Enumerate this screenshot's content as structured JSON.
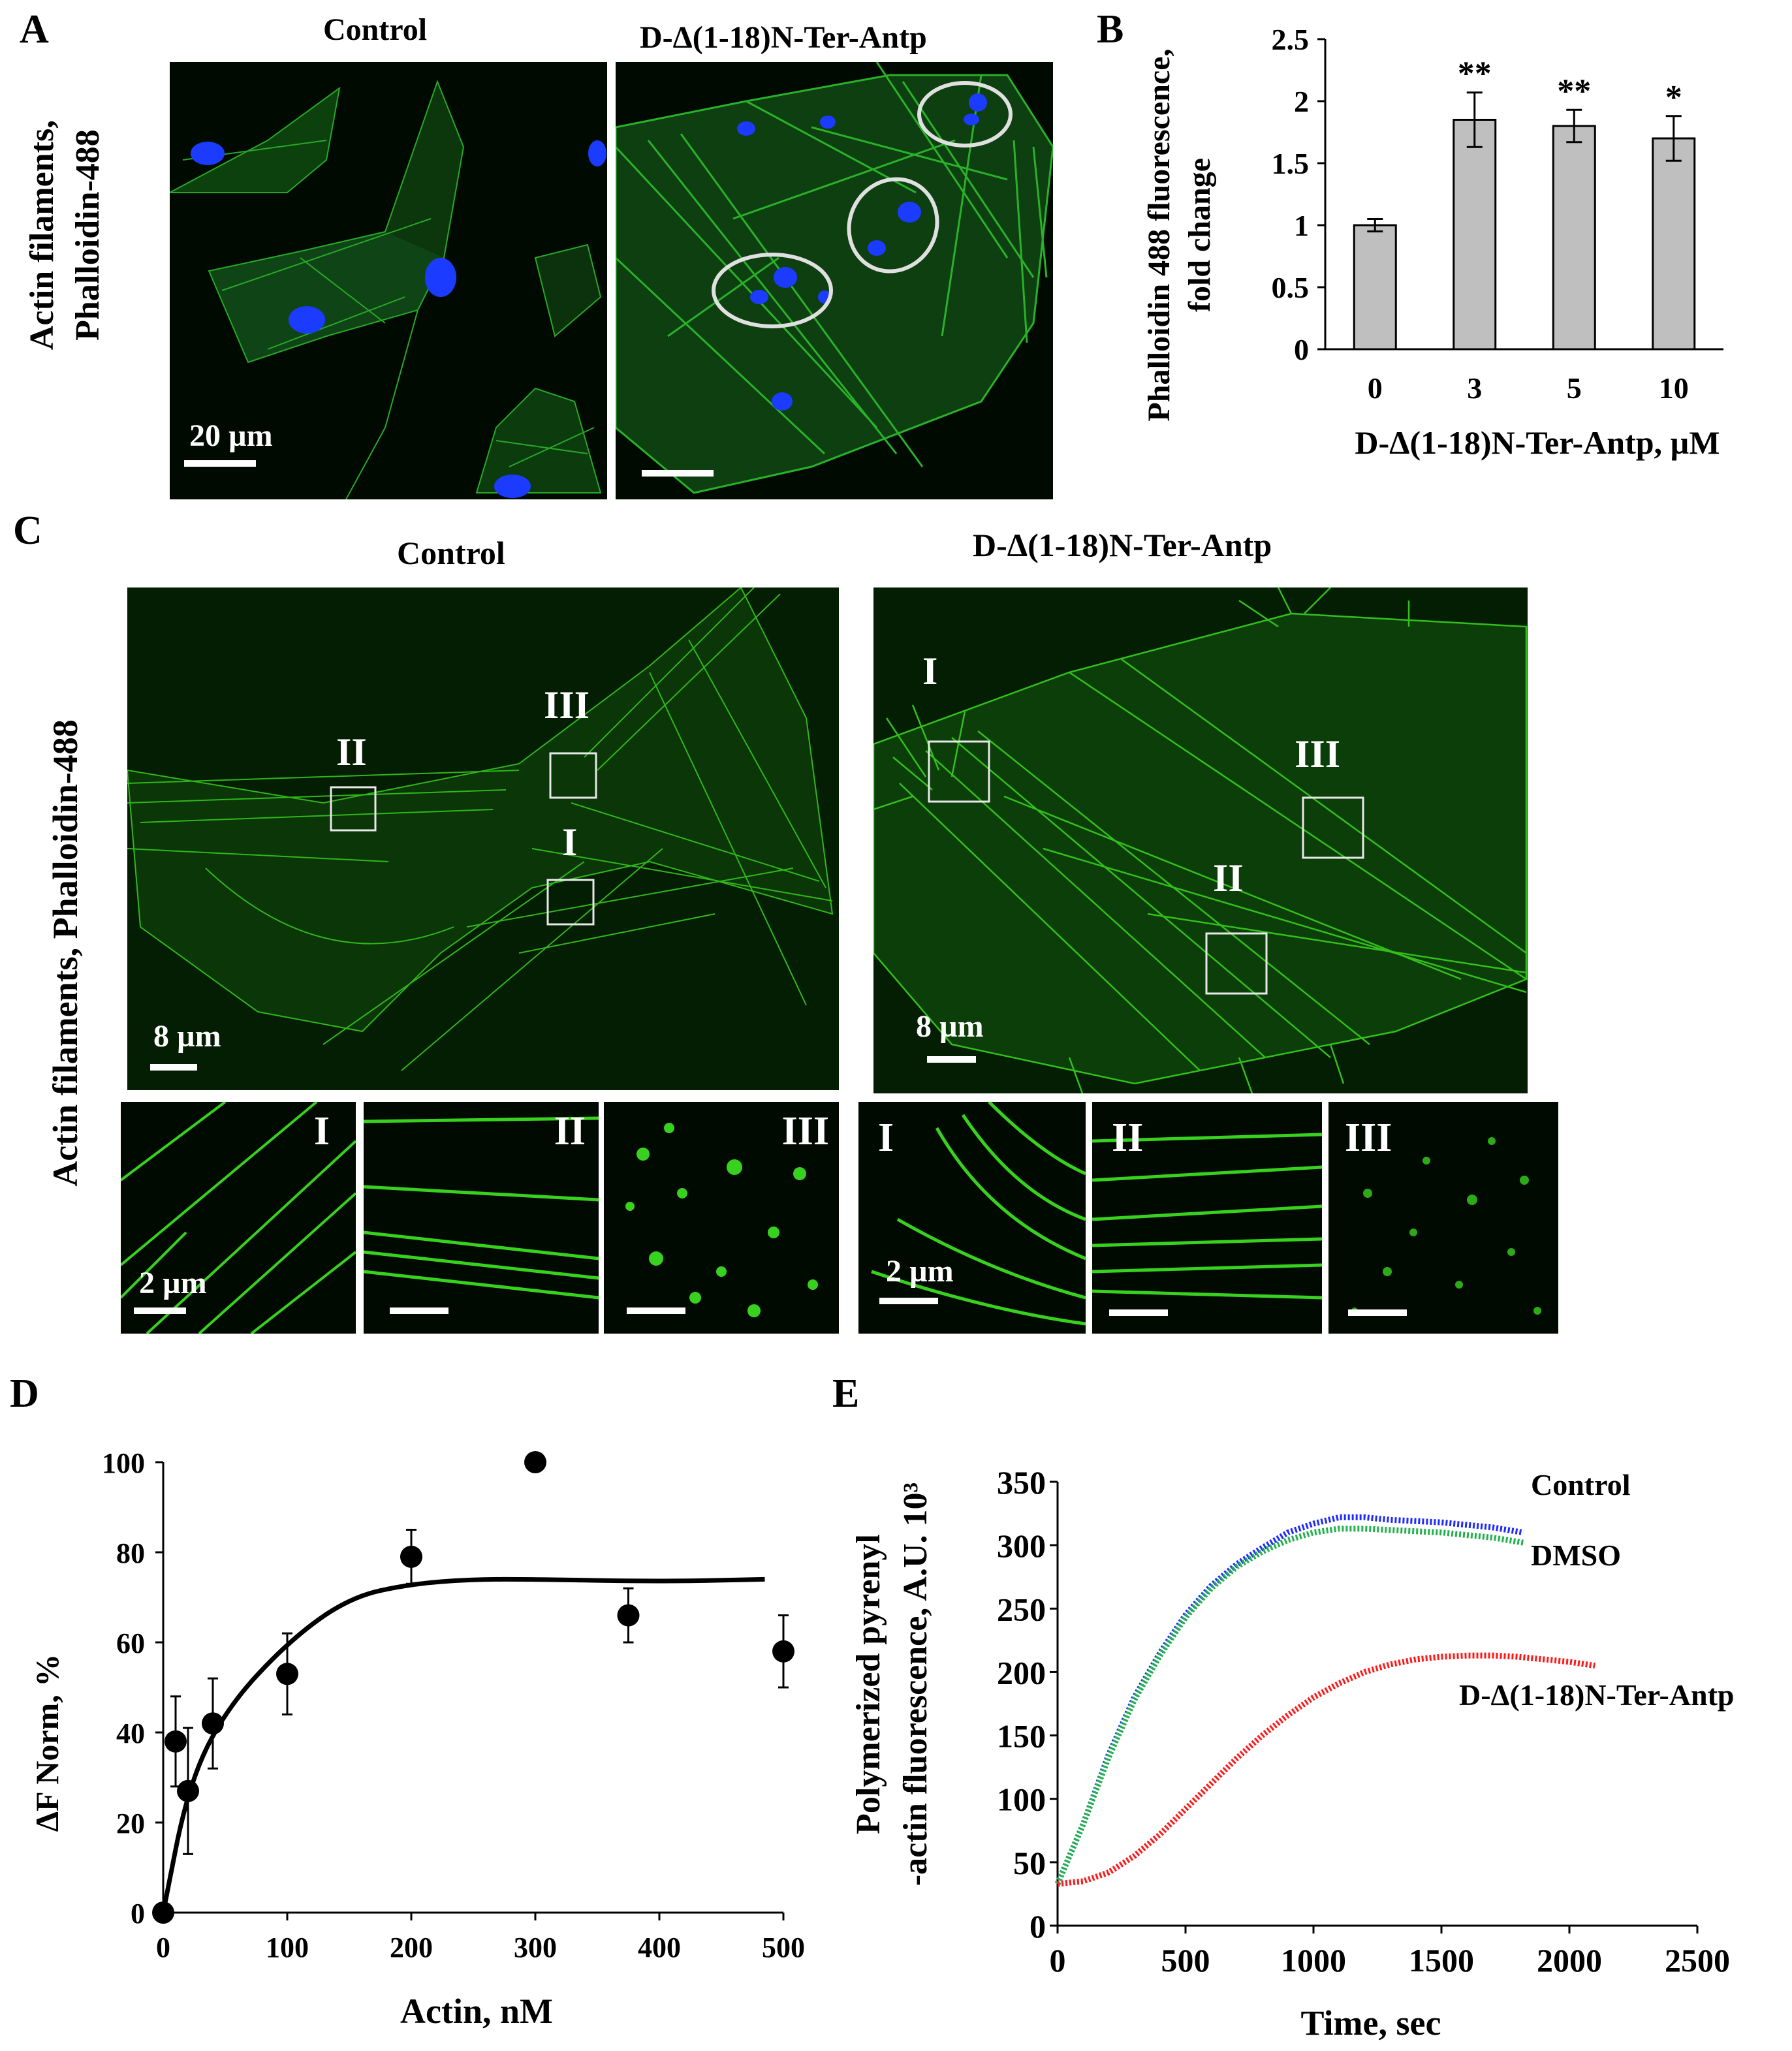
{
  "panels": {
    "A": {
      "letter": "A",
      "side_label_line1": "Actin filaments,",
      "side_label_line2": "Phalloidin-488",
      "control_title": "Control",
      "treated_title": "D-Δ(1-18)N-Ter-Antp",
      "scale_bar": "20 µm",
      "colors": {
        "actin": "#2fc42f",
        "nuclei": "#1b3cff",
        "circle": "#e0e0e0"
      }
    },
    "B": {
      "letter": "B",
      "ylabel_line1": "Phalloidin 488 fluorescence,",
      "ylabel_line2": "fold change",
      "xlabel": "D-Δ(1-18)N-Ter-Antp, µM"
    },
    "C": {
      "letter": "C",
      "side_label": "Actin filaments, Phalloidin-488",
      "control_title": "Control",
      "treated_title": "D-Δ(1-18)N-Ter-Antp",
      "scale_bar_large": "8 µm",
      "scale_bar_small": "2 µm",
      "roi_labels": [
        "I",
        "II",
        "III"
      ]
    },
    "D": {
      "letter": "D",
      "ylabel": "ΔF Norm, %",
      "xlabel": "Actin, nM"
    },
    "E": {
      "letter": "E",
      "ylabel_line1": "Polymerized pyrenyl",
      "ylabel_line2": "-actin fluorescence, A.U. 10³",
      "xlabel": "Time, sec",
      "legend": [
        "Control",
        "DMSO",
        "D-Δ(1-18)N-Ter-Antp"
      ]
    }
  },
  "chart_data": [
    {
      "panel": "B",
      "type": "bar",
      "categories": [
        "0",
        "3",
        "5",
        "10"
      ],
      "values": [
        1.0,
        1.85,
        1.8,
        1.7
      ],
      "errors": [
        0.05,
        0.22,
        0.13,
        0.18
      ],
      "significance": [
        "",
        "**",
        "**",
        "*"
      ],
      "xlabel": "D-Δ(1-18)N-Ter-Antp, µM",
      "ylabel": "Phalloidin 488 fluorescence, fold change",
      "ylim": [
        0,
        2.5
      ],
      "yticks": [
        "0",
        "0.5",
        "1",
        "1.5",
        "2",
        "2.5"
      ],
      "bar_color": "#bfbfbf"
    },
    {
      "panel": "D",
      "type": "scatter",
      "x": [
        0,
        10,
        20,
        40,
        100,
        200,
        300,
        375,
        500
      ],
      "y": [
        0,
        38,
        27,
        42,
        53,
        79,
        100,
        66,
        58
      ],
      "errors": [
        0,
        10,
        14,
        10,
        9,
        6,
        0,
        6,
        8
      ],
      "fit_curve": {
        "x": [
          0,
          20,
          50,
          100,
          150,
          200,
          250,
          300,
          400,
          485
        ],
        "y": [
          0,
          28,
          45,
          60,
          70,
          73,
          74,
          74,
          73.5,
          74
        ]
      },
      "xlabel": "Actin, nM",
      "ylabel": "ΔF Norm, %",
      "xlim": [
        0,
        500
      ],
      "ylim": [
        0,
        100
      ],
      "xticks": [
        "0",
        "100",
        "200",
        "300",
        "400",
        "500"
      ],
      "yticks": [
        "0",
        "20",
        "40",
        "60",
        "80",
        "100"
      ]
    },
    {
      "panel": "E",
      "type": "line",
      "xlabel": "Time, sec",
      "ylabel": "Polymerized pyrenyl -actin fluorescence, A.U. 10³",
      "xlim": [
        0,
        2500
      ],
      "ylim": [
        0,
        350
      ],
      "xticks": [
        "0",
        "500",
        "1000",
        "1500",
        "2000",
        "2500"
      ],
      "yticks": [
        "0",
        "50",
        "100",
        "150",
        "200",
        "250",
        "300",
        "350"
      ],
      "series": [
        {
          "name": "Control",
          "color": "#1f2bff",
          "x": [
            0,
            100,
            200,
            300,
            400,
            500,
            600,
            700,
            800,
            900,
            1000,
            1100,
            1200,
            1300,
            1400,
            1500,
            1600,
            1700,
            1820
          ],
          "y": [
            33,
            80,
            135,
            180,
            215,
            245,
            268,
            285,
            298,
            310,
            317,
            322,
            322,
            320,
            319,
            318,
            316,
            314,
            310
          ]
        },
        {
          "name": "DMSO",
          "color": "#22b14c",
          "x": [
            0,
            100,
            200,
            300,
            400,
            500,
            600,
            700,
            800,
            900,
            1000,
            1100,
            1200,
            1300,
            1400,
            1500,
            1600,
            1700,
            1820
          ],
          "y": [
            33,
            80,
            133,
            178,
            213,
            243,
            266,
            283,
            295,
            304,
            310,
            313,
            313,
            312,
            311,
            310,
            308,
            306,
            302
          ]
        },
        {
          "name": "D-Δ(1-18)N-Ter-Antp",
          "color": "#ff1a1a",
          "x": [
            0,
            100,
            200,
            300,
            400,
            500,
            600,
            700,
            800,
            900,
            1000,
            1100,
            1200,
            1300,
            1400,
            1500,
            1600,
            1700,
            1800,
            1900,
            2000,
            2100
          ],
          "y": [
            33,
            35,
            42,
            55,
            72,
            92,
            112,
            132,
            150,
            166,
            180,
            191,
            200,
            206,
            210,
            212,
            213,
            213,
            212,
            210,
            208,
            205
          ]
        }
      ]
    }
  ]
}
